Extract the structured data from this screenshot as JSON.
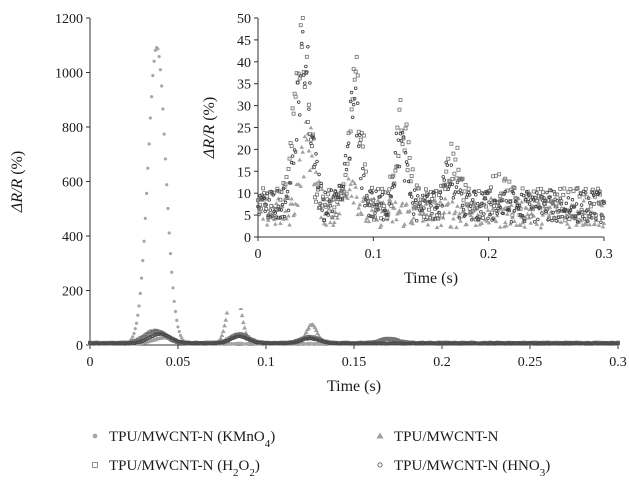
{
  "chart_data": [
    {
      "id": "main",
      "type": "scatter",
      "xlabel": "Time (s)",
      "ylabel_main": "ΔR/R",
      "ylabel_unit": " (%)",
      "xlim": [
        0,
        0.3
      ],
      "ylim": [
        0,
        1200
      ],
      "xticks": [
        0,
        0.05,
        0.1,
        0.15,
        0.2,
        0.25,
        0.3
      ],
      "xtick_labels": [
        "0",
        "0.05",
        "0.1",
        "0.15",
        "0.2",
        "0.25",
        "0.3"
      ],
      "yticks": [
        0,
        200,
        400,
        600,
        800,
        1000,
        1200
      ],
      "ytick_labels": [
        "0",
        "200",
        "400",
        "600",
        "800",
        "1000",
        "1200"
      ],
      "grid": false,
      "series": [
        {
          "name": "TPU/MWCNT-N (KMnO4)",
          "marker": "circle",
          "color": "#a6a6a6",
          "peaks": [
            {
              "x": 0.038,
              "height": 1090,
              "width": 0.005
            }
          ],
          "baseline": 5
        },
        {
          "name": "TPU/MWCNT-N",
          "marker": "triangle",
          "color": "#a0a0a0",
          "peaks": [
            {
              "x": 0.042,
              "height": 22,
              "width": 0.006
            },
            {
              "x": 0.082,
              "height": 230,
              "width": 0.0035
            },
            {
              "x": 0.126,
              "height": 70,
              "width": 0.003
            }
          ],
          "baseline": 5
        },
        {
          "name": "TPU/MWCNT-N (H2O2)",
          "marker": "square",
          "color": "#707070",
          "peaks": [
            {
              "x": 0.037,
              "height": 44,
              "width": 0.006
            },
            {
              "x": 0.085,
              "height": 32,
              "width": 0.005
            },
            {
              "x": 0.125,
              "height": 22,
              "width": 0.005
            },
            {
              "x": 0.17,
              "height": 15,
              "width": 0.005
            }
          ],
          "baseline": 7
        },
        {
          "name": "TPU/MWCNT-N (HNO3)",
          "marker": "circle-small",
          "color": "#4a4a4a",
          "peaks": [
            {
              "x": 0.04,
              "height": 35,
              "width": 0.006
            },
            {
              "x": 0.085,
              "height": 25,
              "width": 0.005
            },
            {
              "x": 0.125,
              "height": 18,
              "width": 0.005
            }
          ],
          "baseline": 6
        }
      ]
    },
    {
      "id": "inset",
      "type": "scatter",
      "xlabel": "Time (s)",
      "ylabel_main": "ΔR/R",
      "ylabel_unit": " (%)",
      "xlim": [
        0,
        0.3
      ],
      "ylim": [
        0,
        50
      ],
      "xticks": [
        0,
        0.1,
        0.2,
        0.3
      ],
      "xtick_labels": [
        "0",
        "0.1",
        "0.2",
        "0.3"
      ],
      "yticks": [
        0,
        5,
        10,
        15,
        20,
        25,
        30,
        35,
        40,
        45,
        50
      ],
      "ytick_labels": [
        "0",
        "5",
        "10",
        "15",
        "20",
        "25",
        "30",
        "35",
        "40",
        "45",
        "50"
      ],
      "grid": false,
      "series": [
        {
          "name": "TPU/MWCNT-N",
          "marker": "triangle",
          "color": "#a0a0a0",
          "peaks": [
            {
              "x": 0.043,
              "height": 16,
              "width": 0.006
            },
            {
              "x": 0.08,
              "height": 8,
              "width": 0.005
            }
          ],
          "baseline": 5.5
        },
        {
          "name": "TPU/MWCNT-N (H2O2)",
          "marker": "square",
          "color": "#6e6e6e",
          "peaks": [
            {
              "x": 0.038,
              "height": 38,
              "width": 0.006
            },
            {
              "x": 0.085,
              "height": 26,
              "width": 0.005
            },
            {
              "x": 0.125,
              "height": 19,
              "width": 0.005
            },
            {
              "x": 0.17,
              "height": 10,
              "width": 0.005
            },
            {
              "x": 0.21,
              "height": 5,
              "width": 0.005
            }
          ],
          "baseline": 7.5
        },
        {
          "name": "TPU/MWCNT-N (HNO3)",
          "marker": "circle-small",
          "color": "#3f3f3f",
          "peaks": [
            {
              "x": 0.04,
              "height": 33,
              "width": 0.006
            },
            {
              "x": 0.083,
              "height": 22,
              "width": 0.005
            },
            {
              "x": 0.123,
              "height": 14,
              "width": 0.005
            },
            {
              "x": 0.165,
              "height": 6,
              "width": 0.005
            }
          ],
          "baseline": 7
        }
      ]
    }
  ],
  "legend": [
    {
      "marker": "circle",
      "color": "#a6a6a6",
      "label": "TPU/MWCNT-N (KMnO",
      "sub": "4",
      "tail": ")"
    },
    {
      "marker": "triangle",
      "color": "#a0a0a0",
      "label": "TPU/MWCNT-N",
      "sub": "",
      "tail": ""
    },
    {
      "marker": "square",
      "color": "#707070",
      "label": "TPU/MWCNT-N (H",
      "sub": "2",
      "mid": "O",
      "sub2": "2",
      "tail": ")"
    },
    {
      "marker": "circle-small",
      "color": "#4a4a4a",
      "label": "TPU/MWCNT-N (HNO",
      "sub": "3",
      "tail": ")"
    }
  ]
}
